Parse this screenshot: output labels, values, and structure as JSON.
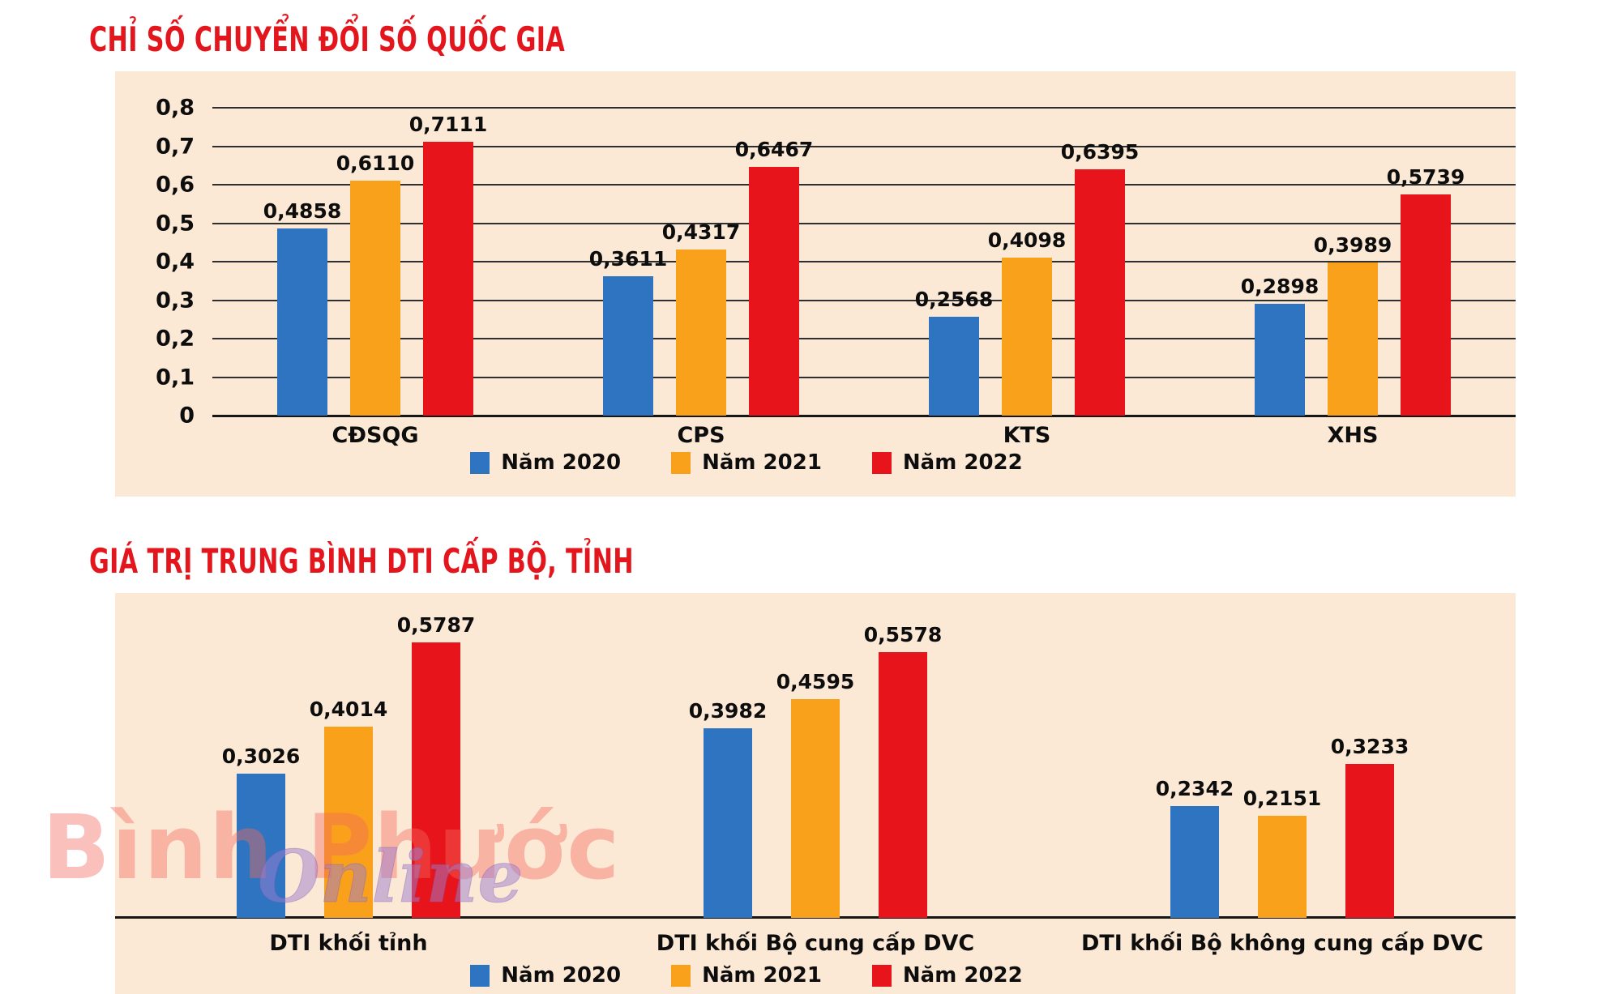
{
  "page": {
    "watermark_line1": "Bình Phước",
    "watermark_line2": "Online"
  },
  "colors": {
    "series_2020": "#2F74C0",
    "series_2021": "#F9A11B",
    "series_2022": "#E8141B",
    "panel_background": "#FBE8D5",
    "title_red": "#E4161D",
    "grid_line": "#2E2E2E",
    "axis_line": "#161616",
    "label_text": "#0D0D0D"
  },
  "chart_data": [
    {
      "type": "bar",
      "title": "CHỈ SỐ CHUYỂN ĐỔI SỐ QUỐC GIA",
      "categories": [
        "CĐSQG",
        "CPS",
        "KTS",
        "XHS"
      ],
      "series": [
        {
          "name": "Năm 2020",
          "color": "#2F74C0",
          "values": [
            0.4858,
            0.3611,
            0.2568,
            0.2898
          ]
        },
        {
          "name": "Năm 2021",
          "color": "#F9A11B",
          "values": [
            0.611,
            0.4317,
            0.4098,
            0.3989
          ]
        },
        {
          "name": "Năm 2022",
          "color": "#E8141B",
          "values": [
            0.7111,
            0.6467,
            0.6395,
            0.5739
          ]
        }
      ],
      "y_ticks": [
        "0,8",
        "0,7",
        "0,6",
        "0,5",
        "0,4",
        "0,3",
        "0,2",
        "0,1",
        "0"
      ],
      "ylim": [
        0,
        0.8
      ],
      "grid": true,
      "legend_position": "bottom",
      "value_label_decimal_separator": ","
    },
    {
      "type": "bar",
      "title": "GIÁ TRỊ TRUNG BÌNH DTI CẤP BỘ, TỈNH",
      "categories": [
        "DTI khối tỉnh",
        "DTI khối Bộ cung cấp DVC",
        "DTI khối Bộ không cung cấp DVC"
      ],
      "series": [
        {
          "name": "Năm 2020",
          "color": "#2F74C0",
          "values": [
            0.3026,
            0.3982,
            0.2342
          ]
        },
        {
          "name": "Năm 2021",
          "color": "#F9A11B",
          "values": [
            0.4014,
            0.4595,
            0.2151
          ]
        },
        {
          "name": "Năm 2022",
          "color": "#E8141B",
          "values": [
            0.5787,
            0.5578,
            0.3233
          ]
        }
      ],
      "y_ticks": [],
      "ylim": [
        0,
        0.682
      ],
      "grid": false,
      "legend_position": "bottom",
      "value_label_decimal_separator": ","
    }
  ]
}
